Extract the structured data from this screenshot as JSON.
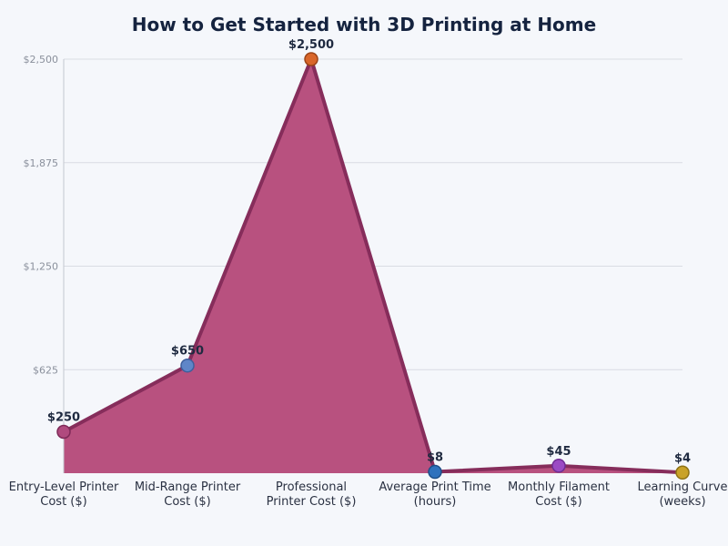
{
  "chart_data": {
    "type": "area",
    "title": "How to Get Started with 3D Printing at Home",
    "xlabel": "",
    "ylabel": "",
    "categories": [
      [
        "Entry-Level Printer",
        "Cost ($)"
      ],
      [
        "Mid-Range Printer",
        "Cost ($)"
      ],
      [
        "Professional",
        "Printer Cost ($)"
      ],
      [
        "Average Print Time",
        "(hours)"
      ],
      [
        "Monthly Filament",
        "Cost ($)"
      ],
      [
        "Learning Curve",
        "(weeks)"
      ]
    ],
    "values": [
      250,
      650,
      2500,
      8,
      45,
      4
    ],
    "data_labels": [
      "$250",
      "$650",
      "$2,500",
      "$8",
      "$45",
      "$4"
    ],
    "marker_colors": [
      "#b04a7e",
      "#5f86c8",
      "#d9662a",
      "#2f72bd",
      "#9b4bc4",
      "#c9a227"
    ],
    "marker_stroke_colors": [
      "#7e2a58",
      "#3e5f9c",
      "#9b4418",
      "#1e4f88",
      "#6e2d92",
      "#8e7214"
    ],
    "fill_color": "#b8517f",
    "line_color": "#862d5b",
    "yticks": [
      625,
      1250,
      1875,
      2500
    ],
    "ytick_labels": [
      "$625",
      "$1,250",
      "$1,875",
      "$2,500"
    ],
    "ylim": [
      0,
      2500
    ],
    "grid": true,
    "legend": null
  }
}
